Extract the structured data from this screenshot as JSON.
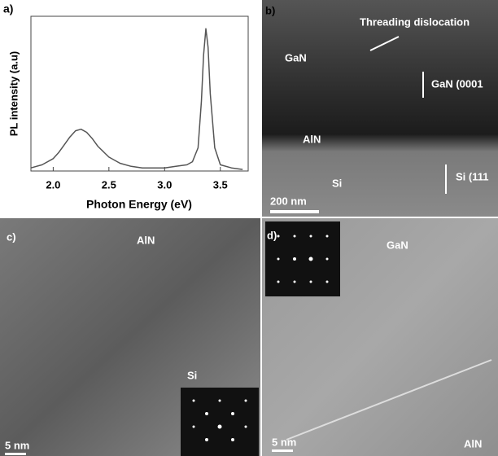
{
  "chart_data": {
    "type": "line",
    "panel_label": "a)",
    "x_label": "Photon Energy (eV)",
    "y_label": "PL intensity (a.u)",
    "x": [
      1.8,
      1.9,
      2.0,
      2.05,
      2.1,
      2.15,
      2.2,
      2.25,
      2.3,
      2.35,
      2.4,
      2.5,
      2.6,
      2.7,
      2.8,
      2.9,
      3.0,
      3.1,
      3.2,
      3.25,
      3.3,
      3.33,
      3.35,
      3.37,
      3.39,
      3.41,
      3.45,
      3.5,
      3.6,
      3.7
    ],
    "values": [
      0.02,
      0.04,
      0.08,
      0.12,
      0.17,
      0.22,
      0.26,
      0.27,
      0.25,
      0.21,
      0.16,
      0.09,
      0.05,
      0.03,
      0.02,
      0.02,
      0.02,
      0.03,
      0.04,
      0.06,
      0.15,
      0.45,
      0.75,
      0.92,
      0.8,
      0.5,
      0.15,
      0.04,
      0.02,
      0.01
    ],
    "color": "#555555",
    "xlim": [
      1.8,
      3.75
    ],
    "ylim": [
      0,
      1
    ],
    "xticks": [
      {
        "value": 2,
        "label": "2.0"
      },
      2.5,
      {
        "value": 3,
        "label": "3.0"
      },
      3.5
    ]
  },
  "panels": {
    "b": {
      "label": "b)",
      "texts": [
        "Threading dislocation",
        "GaN",
        "GaN (0001",
        "AlN",
        "Si",
        "Si (111",
        "200 nm"
      ]
    },
    "c": {
      "label": "c)",
      "texts": [
        "AlN",
        "Si",
        "5 nm"
      ]
    },
    "d": {
      "label": "d)",
      "texts": [
        "GaN",
        "5 nm",
        "AlN"
      ]
    }
  }
}
